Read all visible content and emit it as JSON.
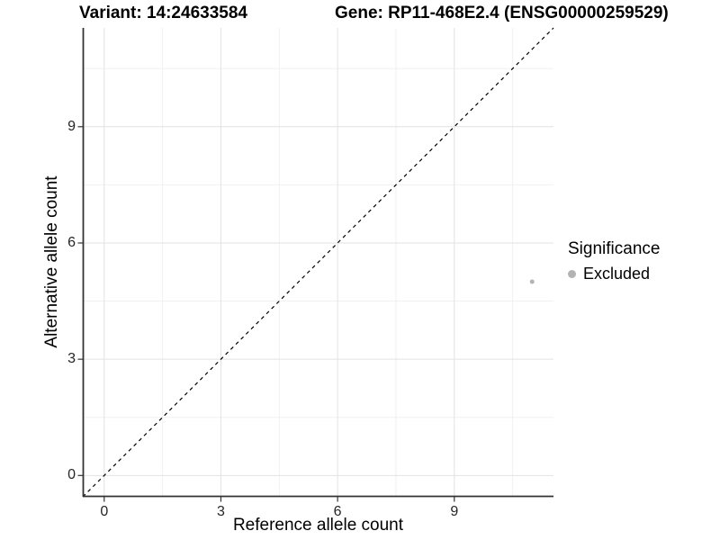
{
  "titles": {
    "variant": "Variant: 14:24633584",
    "gene": "Gene: RP11-468E2.4 (ENSG00000259529)"
  },
  "axes": {
    "x": {
      "label": "Reference allele count"
    },
    "y": {
      "label": "Alternative allele count"
    }
  },
  "legend": {
    "title": "Significance",
    "items": [
      {
        "label": "Excluded",
        "color": "#b3b3b3",
        "shape": "circle"
      }
    ]
  },
  "colors": {
    "background": "#ffffff",
    "major_grid": "#e2e2e2",
    "minor_grid": "#f0f0f0",
    "axis_line": "#333333",
    "tick_mark": "#333333",
    "tick_label": "#262626",
    "identity_line": "#000000"
  },
  "chart_data": {
    "type": "scatter",
    "title": "Variant: 14:24633584 / Gene: RP11-468E2.4 (ENSG00000259529)",
    "xlabel": "Reference allele count",
    "ylabel": "Alternative allele count",
    "xlim": [
      -0.55,
      11.55
    ],
    "ylim": [
      -0.55,
      11.55
    ],
    "x_ticks": [
      0,
      3,
      6,
      9
    ],
    "y_ticks": [
      0,
      3,
      6,
      9
    ],
    "x_minor_ticks": [
      1.5,
      4.5,
      7.5,
      10.5
    ],
    "y_minor_ticks": [
      1.5,
      4.5,
      7.5,
      10.5
    ],
    "grid": "major+minor",
    "legend_position": "right",
    "reference_line": {
      "slope": 1,
      "intercept": 0,
      "style": "dashed",
      "color": "#000000"
    },
    "series": [
      {
        "name": "Excluded",
        "color": "#b3b3b3",
        "points": [
          {
            "x": 11,
            "y": 5
          }
        ]
      }
    ]
  }
}
